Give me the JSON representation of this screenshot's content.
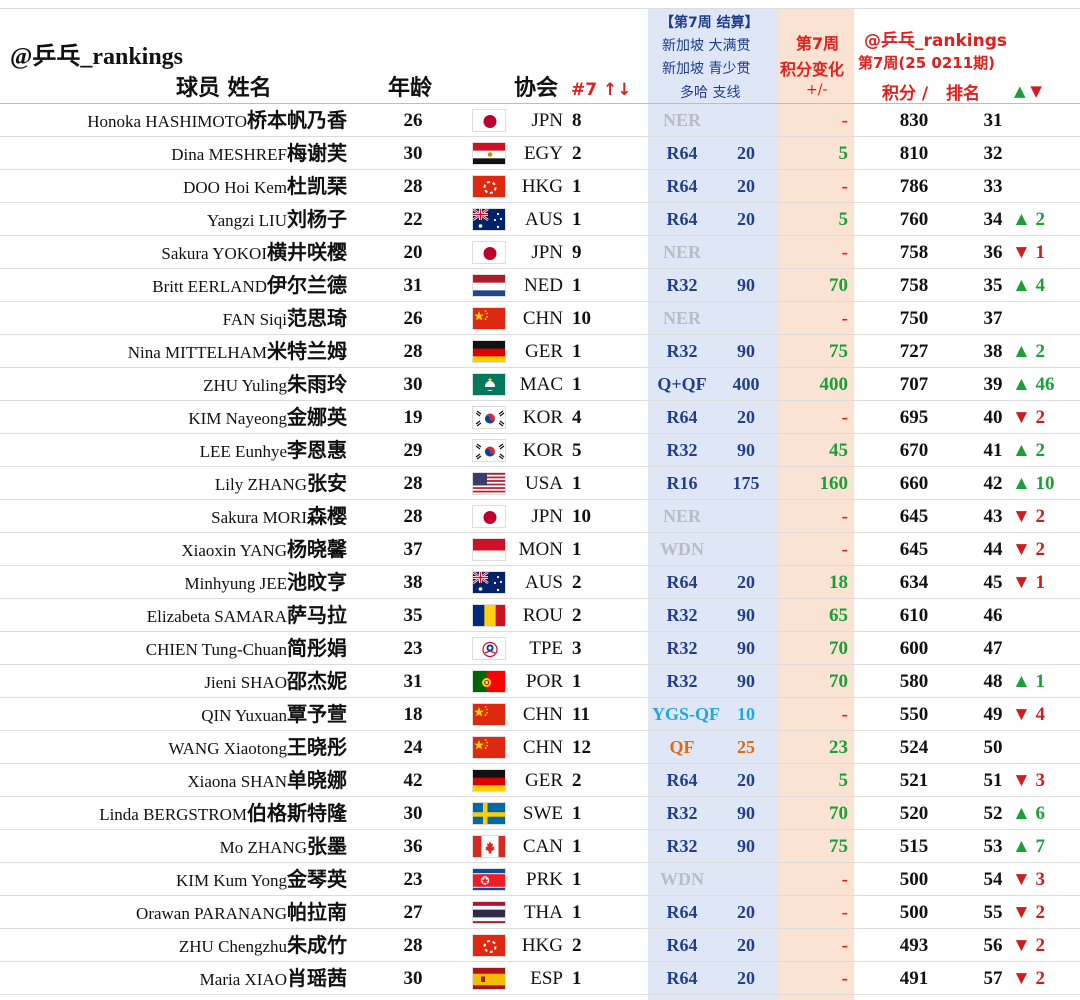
{
  "watermark": "@乒乓_rankings",
  "headers": {
    "player": "球员  姓名",
    "age": "年龄",
    "association": "协会",
    "sort": "#7 ↑↓",
    "event_line1": "【第7周 结算】",
    "event_line2": "新加坡 大满贯",
    "event_line3": "新加坡 青少贯",
    "event_line4": "多哈 支线",
    "change_line1": "第7周",
    "change_line2": "积分变化",
    "change_line3": "+/-",
    "rank_line1": "@乒乓_rankings",
    "rank_line2": "第7周(25 0211期)",
    "points_label": "积分 /",
    "rank_label": "排名",
    "arrows": "▲▼"
  },
  "colors": {
    "blue_band": "#dfe6f5",
    "orange_band": "#fbe3d4",
    "up": "#1aa036",
    "down": "#d01c1c",
    "accent_red": "#e0201c",
    "stage_blue": "#233f89",
    "muted": "#b9bcc6"
  },
  "rows": [
    {
      "en": "Honoka HASHIMOTO",
      "cn": "桥本帆乃香",
      "age": "26",
      "flag": "JPN",
      "assoc": "JPN",
      "num": "8",
      "stage": "NER",
      "stage_style": "gray",
      "pts": "",
      "chg": "-",
      "chg_style": "red",
      "score": "830",
      "rank": "31",
      "move": "",
      "dir": ""
    },
    {
      "en": "Dina MESHREF",
      "cn": "梅谢芙",
      "age": "30",
      "flag": "EGY",
      "assoc": "EGY",
      "num": "2",
      "stage": "R64",
      "stage_style": "",
      "pts": "20",
      "chg": "5",
      "chg_style": "",
      "score": "810",
      "rank": "32",
      "move": "",
      "dir": ""
    },
    {
      "en": "DOO Hoi Kem",
      "cn": "杜凯琹",
      "age": "28",
      "flag": "HKG",
      "assoc": "HKG",
      "num": "1",
      "stage": "R64",
      "stage_style": "",
      "pts": "20",
      "chg": "-",
      "chg_style": "red",
      "score": "786",
      "rank": "33",
      "move": "",
      "dir": ""
    },
    {
      "en": "Yangzi LIU",
      "cn": "刘杨子",
      "age": "22",
      "flag": "AUS",
      "assoc": "AUS",
      "num": "1",
      "stage": "R64",
      "stage_style": "",
      "pts": "20",
      "chg": "5",
      "chg_style": "",
      "score": "760",
      "rank": "34",
      "move": "▲ 2",
      "dir": "up"
    },
    {
      "en": "Sakura YOKOI",
      "cn": "横井咲樱",
      "age": "20",
      "flag": "JPN",
      "assoc": "JPN",
      "num": "9",
      "stage": "NER",
      "stage_style": "gray",
      "pts": "",
      "chg": "-",
      "chg_style": "red",
      "score": "758",
      "rank": "36",
      "move": "▼ 1",
      "dir": "down"
    },
    {
      "en": "Britt EERLAND",
      "cn": "伊尔兰德",
      "age": "31",
      "flag": "NED",
      "assoc": "NED",
      "num": "1",
      "stage": "R32",
      "stage_style": "",
      "pts": "90",
      "chg": "70",
      "chg_style": "",
      "score": "758",
      "rank": "35",
      "move": "▲ 4",
      "dir": "up"
    },
    {
      "en": "FAN Siqi",
      "cn": "范思琦",
      "age": "26",
      "flag": "CHN",
      "assoc": "CHN",
      "num": "10",
      "stage": "NER",
      "stage_style": "gray",
      "pts": "",
      "chg": "-",
      "chg_style": "red",
      "score": "750",
      "rank": "37",
      "move": "",
      "dir": ""
    },
    {
      "en": "Nina MITTELHAM",
      "cn": "米特兰姆",
      "age": "28",
      "flag": "GER",
      "assoc": "GER",
      "num": "1",
      "stage": "R32",
      "stage_style": "",
      "pts": "90",
      "chg": "75",
      "chg_style": "",
      "score": "727",
      "rank": "38",
      "move": "▲ 2",
      "dir": "up"
    },
    {
      "en": "ZHU Yuling",
      "cn": "朱雨玲",
      "age": "30",
      "flag": "MAC",
      "assoc": "MAC",
      "num": "1",
      "stage": "Q+QF",
      "stage_style": "",
      "pts": "400",
      "chg": "400",
      "chg_style": "",
      "score": "707",
      "rank": "39",
      "move": "▲ 46",
      "dir": "up"
    },
    {
      "en": "KIM Nayeong",
      "cn": "金娜英",
      "age": "19",
      "flag": "KOR",
      "assoc": "KOR",
      "num": "4",
      "stage": "R64",
      "stage_style": "",
      "pts": "20",
      "chg": "-",
      "chg_style": "red",
      "score": "695",
      "rank": "40",
      "move": "▼ 2",
      "dir": "down"
    },
    {
      "en": "LEE Eunhye",
      "cn": "李恩惠",
      "age": "29",
      "flag": "KOR",
      "assoc": "KOR",
      "num": "5",
      "stage": "R32",
      "stage_style": "",
      "pts": "90",
      "chg": "45",
      "chg_style": "",
      "score": "670",
      "rank": "41",
      "move": "▲ 2",
      "dir": "up"
    },
    {
      "en": "Lily ZHANG",
      "cn": "张安",
      "age": "28",
      "flag": "USA",
      "assoc": "USA",
      "num": "1",
      "stage": "R16",
      "stage_style": "",
      "pts": "175",
      "chg": "160",
      "chg_style": "",
      "score": "660",
      "rank": "42",
      "move": "▲ 10",
      "dir": "up"
    },
    {
      "en": "Sakura MORI",
      "cn": "森樱",
      "age": "28",
      "flag": "JPN",
      "assoc": "JPN",
      "num": "10",
      "stage": "NER",
      "stage_style": "gray",
      "pts": "",
      "chg": "-",
      "chg_style": "red",
      "score": "645",
      "rank": "43",
      "move": "▼ 2",
      "dir": "down"
    },
    {
      "en": "Xiaoxin YANG",
      "cn": "杨晓馨",
      "age": "37",
      "flag": "MON",
      "assoc": "MON",
      "num": "1",
      "stage": "WDN",
      "stage_style": "gray",
      "pts": "",
      "chg": "-",
      "chg_style": "red",
      "score": "645",
      "rank": "44",
      "move": "▼ 2",
      "dir": "down"
    },
    {
      "en": "Minhyung JEE",
      "cn": "池旼亨",
      "age": "38",
      "flag": "AUS",
      "assoc": "AUS",
      "num": "2",
      "stage": "R64",
      "stage_style": "",
      "pts": "20",
      "chg": "18",
      "chg_style": "",
      "score": "634",
      "rank": "45",
      "move": "▼ 1",
      "dir": "down"
    },
    {
      "en": "Elizabeta SAMARA",
      "cn": "萨马拉",
      "age": "35",
      "flag": "ROU",
      "assoc": "ROU",
      "num": "2",
      "stage": "R32",
      "stage_style": "",
      "pts": "90",
      "chg": "65",
      "chg_style": "",
      "score": "610",
      "rank": "46",
      "move": "",
      "dir": ""
    },
    {
      "en": "CHIEN Tung-Chuan",
      "cn": "简彤娟",
      "age": "23",
      "flag": "TPE",
      "assoc": "TPE",
      "num": "3",
      "stage": "R32",
      "stage_style": "",
      "pts": "90",
      "chg": "70",
      "chg_style": "",
      "score": "600",
      "rank": "47",
      "move": "",
      "dir": ""
    },
    {
      "en": "Jieni SHAO",
      "cn": "邵杰妮",
      "age": "31",
      "flag": "POR",
      "assoc": "POR",
      "num": "1",
      "stage": "R32",
      "stage_style": "",
      "pts": "90",
      "chg": "70",
      "chg_style": "",
      "score": "580",
      "rank": "48",
      "move": "▲ 1",
      "dir": "up"
    },
    {
      "en": "QIN Yuxuan",
      "cn": "覃予萱",
      "age": "18",
      "flag": "CHN",
      "assoc": "CHN",
      "num": "11",
      "stage": "YGS-QF",
      "stage_style": "cyan",
      "pts": "10",
      "pts_style": "cyan",
      "chg": "-",
      "chg_style": "red",
      "score": "550",
      "rank": "49",
      "move": "▼ 4",
      "dir": "down"
    },
    {
      "en": "WANG Xiaotong",
      "cn": "王晓彤",
      "age": "24",
      "flag": "CHN",
      "assoc": "CHN",
      "num": "12",
      "stage": "QF",
      "stage_style": "orange",
      "pts": "25",
      "pts_style": "orange",
      "chg": "23",
      "chg_style": "",
      "score": "524",
      "rank": "50",
      "move": "",
      "dir": ""
    },
    {
      "en": "Xiaona SHAN",
      "cn": "单晓娜",
      "age": "42",
      "flag": "GER",
      "assoc": "GER",
      "num": "2",
      "stage": "R64",
      "stage_style": "",
      "pts": "20",
      "chg": "5",
      "chg_style": "",
      "score": "521",
      "rank": "51",
      "move": "▼ 3",
      "dir": "down"
    },
    {
      "en": "Linda BERGSTROM",
      "cn": "伯格斯特隆",
      "age": "30",
      "flag": "SWE",
      "assoc": "SWE",
      "num": "1",
      "stage": "R32",
      "stage_style": "",
      "pts": "90",
      "chg": "70",
      "chg_style": "",
      "score": "520",
      "rank": "52",
      "move": "▲ 6",
      "dir": "up"
    },
    {
      "en": "Mo ZHANG",
      "cn": "张墨",
      "age": "36",
      "flag": "CAN",
      "assoc": "CAN",
      "num": "1",
      "stage": "R32",
      "stage_style": "",
      "pts": "90",
      "chg": "75",
      "chg_style": "",
      "score": "515",
      "rank": "53",
      "move": "▲ 7",
      "dir": "up"
    },
    {
      "en": "KIM Kum Yong",
      "cn": "金琴英",
      "age": "23",
      "flag": "PRK",
      "assoc": "PRK",
      "num": "1",
      "stage": "WDN",
      "stage_style": "gray",
      "pts": "",
      "chg": "-",
      "chg_style": "red",
      "score": "500",
      "rank": "54",
      "move": "▼ 3",
      "dir": "down"
    },
    {
      "en": "Orawan PARANANG",
      "cn": "帕拉南",
      "age": "27",
      "flag": "THA",
      "assoc": "THA",
      "num": "1",
      "stage": "R64",
      "stage_style": "",
      "pts": "20",
      "chg": "-",
      "chg_style": "red",
      "score": "500",
      "rank": "55",
      "move": "▼ 2",
      "dir": "down"
    },
    {
      "en": "ZHU Chengzhu",
      "cn": "朱成竹",
      "age": "28",
      "flag": "HKG",
      "assoc": "HKG",
      "num": "2",
      "stage": "R64",
      "stage_style": "",
      "pts": "20",
      "chg": "-",
      "chg_style": "red",
      "score": "493",
      "rank": "56",
      "move": "▼ 2",
      "dir": "down"
    },
    {
      "en": "Maria XIAO",
      "cn": "肖瑶茜",
      "age": "30",
      "flag": "ESP",
      "assoc": "ESP",
      "num": "1",
      "stage": "R64",
      "stage_style": "",
      "pts": "20",
      "chg": "-",
      "chg_style": "red",
      "score": "491",
      "rank": "57",
      "move": "▼ 2",
      "dir": "down"
    }
  ]
}
